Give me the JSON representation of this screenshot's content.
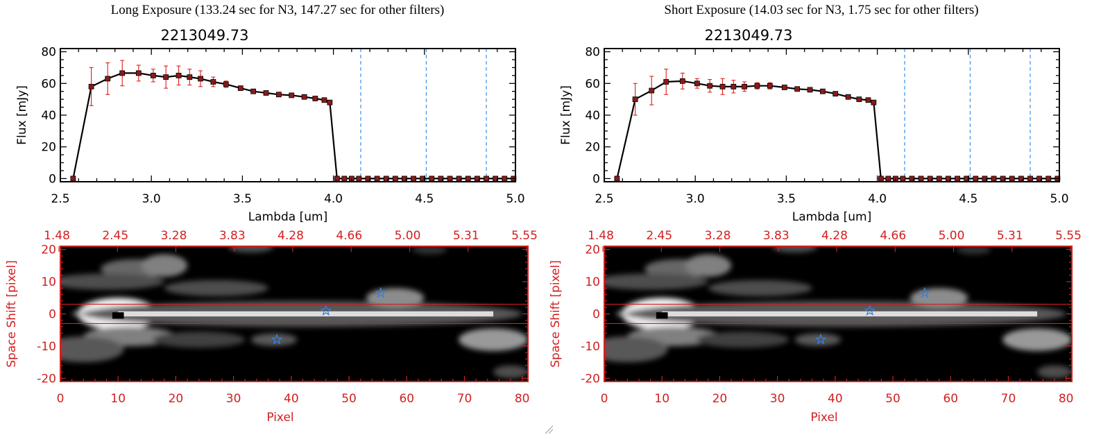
{
  "colors": {
    "line": "#000000",
    "marker": "#8b1a1a",
    "error_bar": "#e21b1b",
    "filter_line": "#3a8fe8",
    "image_frame": "#d11f1f",
    "star": "#3a7fd8"
  },
  "chart_data": [
    {
      "type": "line",
      "title": "Long Exposure (133.24 sec for N3, 147.27 sec for other filters)",
      "subtitle": "2213049.73",
      "xlabel": "Lambda [um]",
      "ylabel": "Flux [mJy]",
      "xlim": [
        2.5,
        5.0
      ],
      "ylim": [
        -2,
        82
      ],
      "xticks": [
        "2.5",
        "3.0",
        "3.5",
        "4.0",
        "4.5",
        "5.0"
      ],
      "yticks": [
        "0",
        "20",
        "40",
        "60",
        "80"
      ],
      "filter_lines": [
        4.15,
        4.51,
        4.84
      ],
      "x": [
        2.57,
        2.67,
        2.76,
        2.84,
        2.93,
        3.01,
        3.08,
        3.15,
        3.21,
        3.27,
        3.34,
        3.41,
        3.49,
        3.56,
        3.63,
        3.7,
        3.77,
        3.84,
        3.9,
        3.95,
        3.98,
        4.02,
        4.06,
        4.1,
        4.14,
        4.19,
        4.24,
        4.29,
        4.34,
        4.39,
        4.44,
        4.49,
        4.54,
        4.59,
        4.64,
        4.69,
        4.74,
        4.79,
        4.84,
        4.89,
        4.94,
        4.99
      ],
      "y": [
        0,
        58,
        63,
        66.5,
        66.5,
        65,
        64,
        65,
        64,
        63,
        61,
        59.5,
        57,
        55,
        54,
        53,
        52.5,
        51.5,
        50.5,
        49.5,
        48,
        0,
        0,
        0,
        0,
        0,
        0,
        0,
        0,
        0,
        0,
        0,
        0,
        0,
        0,
        0,
        0,
        0,
        0,
        0,
        0,
        0
      ],
      "yerr": [
        0,
        12,
        10,
        8,
        5,
        4,
        7,
        6,
        5,
        5,
        3,
        2,
        1,
        1,
        1,
        1,
        1,
        1,
        1,
        1,
        1,
        0,
        0,
        0,
        0,
        0,
        0,
        0,
        0,
        0,
        0,
        0,
        0,
        0,
        0,
        0,
        0,
        0,
        0,
        0,
        0,
        0
      ],
      "image_panel": {
        "xlabel": "Pixel",
        "ylabel": "Space Shift [pixel]",
        "xlim": [
          0,
          81
        ],
        "ylim": [
          -21,
          21
        ],
        "xticks": [
          "0",
          "10",
          "20",
          "30",
          "40",
          "50",
          "60",
          "70",
          "80"
        ],
        "yticks": [
          "-20",
          "-10",
          "0",
          "10",
          "20"
        ],
        "top_ticks": [
          "1.48",
          "2.45",
          "3.28",
          "3.83",
          "4.28",
          "4.66",
          "5.00",
          "5.31",
          "5.55"
        ],
        "band": [
          -3,
          3
        ],
        "stars": [
          [
            37.5,
            -8
          ],
          [
            46,
            1
          ],
          [
            55.5,
            6.5
          ]
        ],
        "blobs": [
          {
            "x": 10,
            "y": 0,
            "rx": 7,
            "ry": 5,
            "v": 0.95
          },
          {
            "x": 30,
            "y": 0,
            "rx": 28,
            "ry": 2.3,
            "v": 0.75
          },
          {
            "x": 42,
            "y": 0,
            "rx": 38,
            "ry": 4,
            "v": 0.35
          },
          {
            "x": 13,
            "y": 14,
            "rx": 6,
            "ry": 3,
            "v": 0.4
          },
          {
            "x": 18,
            "y": 15,
            "rx": 4,
            "ry": 3.5,
            "v": 0.5
          },
          {
            "x": 8,
            "y": 10,
            "rx": 10,
            "ry": 2.5,
            "v": 0.3
          },
          {
            "x": 27,
            "y": 8,
            "rx": 9,
            "ry": 2.5,
            "v": 0.3
          },
          {
            "x": 12,
            "y": -7,
            "rx": 8,
            "ry": 3,
            "v": 0.5
          },
          {
            "x": 4,
            "y": -11,
            "rx": 7,
            "ry": 4,
            "v": 0.35
          },
          {
            "x": 24,
            "y": -8,
            "rx": 8,
            "ry": 2.5,
            "v": 0.25
          },
          {
            "x": 37,
            "y": -8,
            "rx": 4,
            "ry": 2,
            "v": 0.35
          },
          {
            "x": 58,
            "y": 5,
            "rx": 5,
            "ry": 3,
            "v": 0.55
          },
          {
            "x": 33,
            "y": 21,
            "rx": 4,
            "ry": 2,
            "v": 0.3
          },
          {
            "x": 75,
            "y": -8,
            "rx": 6,
            "ry": 3.5,
            "v": 0.6
          },
          {
            "x": 78,
            "y": -18,
            "rx": 3,
            "ry": 2,
            "v": 0.3
          },
          {
            "x": 64,
            "y": 20,
            "rx": 3,
            "ry": 1.5,
            "v": 0.2
          }
        ]
      }
    },
    {
      "type": "line",
      "title": "Short Exposure (14.03 sec for N3, 1.75 sec for other filters)",
      "subtitle": "2213049.73",
      "xlabel": "Lambda [um]",
      "ylabel": "Flux [mJy]",
      "xlim": [
        2.5,
        5.0
      ],
      "ylim": [
        -2,
        82
      ],
      "xticks": [
        "2.5",
        "3.0",
        "3.5",
        "4.0",
        "4.5",
        "5.0"
      ],
      "yticks": [
        "0",
        "20",
        "40",
        "60",
        "80"
      ],
      "filter_lines": [
        4.15,
        4.51,
        4.84
      ],
      "x": [
        2.57,
        2.67,
        2.76,
        2.84,
        2.93,
        3.01,
        3.08,
        3.15,
        3.21,
        3.27,
        3.34,
        3.41,
        3.49,
        3.56,
        3.63,
        3.7,
        3.77,
        3.84,
        3.9,
        3.95,
        3.98,
        4.02,
        4.06,
        4.1,
        4.14,
        4.19,
        4.24,
        4.29,
        4.34,
        4.39,
        4.44,
        4.49,
        4.54,
        4.59,
        4.64,
        4.69,
        4.74,
        4.79,
        4.84,
        4.89,
        4.94,
        4.99
      ],
      "y": [
        0,
        50,
        55.5,
        61,
        61.5,
        60,
        58.5,
        58,
        58,
        58,
        58.5,
        58.5,
        57.5,
        56.5,
        56,
        55,
        53.5,
        51.5,
        50,
        49.5,
        48,
        0,
        0,
        0,
        0,
        0,
        0,
        0,
        0,
        0,
        0,
        0,
        0,
        0,
        0,
        0,
        0,
        0,
        0,
        0,
        0,
        0
      ],
      "yerr": [
        0,
        10,
        9,
        8,
        5,
        3,
        4,
        5,
        4,
        3,
        2,
        2,
        1,
        1,
        1,
        1,
        1,
        1,
        1,
        1,
        1,
        0,
        0,
        0,
        0,
        0,
        0,
        0,
        0,
        0,
        0,
        0,
        0,
        0,
        0,
        0,
        0,
        0,
        0,
        0,
        0,
        0
      ],
      "image_panel": {
        "xlabel": "Pixel",
        "ylabel": "Space Shift [pixel]",
        "xlim": [
          0,
          81
        ],
        "ylim": [
          -21,
          21
        ],
        "xticks": [
          "0",
          "10",
          "20",
          "30",
          "40",
          "50",
          "60",
          "70",
          "80"
        ],
        "yticks": [
          "-20",
          "-10",
          "0",
          "10",
          "20"
        ],
        "top_ticks": [
          "1.48",
          "2.45",
          "3.28",
          "3.83",
          "4.28",
          "4.66",
          "5.00",
          "5.31",
          "5.55"
        ],
        "band": [
          -3,
          3
        ],
        "stars": [
          [
            37.5,
            -8
          ],
          [
            46,
            1
          ],
          [
            55.5,
            6.5
          ]
        ],
        "blobs": [
          {
            "x": 10,
            "y": 0,
            "rx": 7,
            "ry": 5,
            "v": 0.95
          },
          {
            "x": 30,
            "y": 0,
            "rx": 28,
            "ry": 2.3,
            "v": 0.75
          },
          {
            "x": 42,
            "y": 0,
            "rx": 38,
            "ry": 4,
            "v": 0.35
          },
          {
            "x": 13,
            "y": 14,
            "rx": 6,
            "ry": 3,
            "v": 0.4
          },
          {
            "x": 18,
            "y": 15,
            "rx": 4,
            "ry": 3.5,
            "v": 0.5
          },
          {
            "x": 8,
            "y": 10,
            "rx": 10,
            "ry": 2.5,
            "v": 0.3
          },
          {
            "x": 27,
            "y": 8,
            "rx": 9,
            "ry": 2.5,
            "v": 0.3
          },
          {
            "x": 12,
            "y": -7,
            "rx": 8,
            "ry": 3,
            "v": 0.5
          },
          {
            "x": 4,
            "y": -11,
            "rx": 7,
            "ry": 4,
            "v": 0.35
          },
          {
            "x": 24,
            "y": -8,
            "rx": 8,
            "ry": 2.5,
            "v": 0.25
          },
          {
            "x": 37,
            "y": -8,
            "rx": 4,
            "ry": 2,
            "v": 0.35
          },
          {
            "x": 58,
            "y": 5,
            "rx": 5,
            "ry": 3,
            "v": 0.55
          },
          {
            "x": 33,
            "y": 21,
            "rx": 4,
            "ry": 2,
            "v": 0.3
          },
          {
            "x": 75,
            "y": -8,
            "rx": 6,
            "ry": 3.5,
            "v": 0.6
          },
          {
            "x": 78,
            "y": -18,
            "rx": 3,
            "ry": 2,
            "v": 0.3
          },
          {
            "x": 64,
            "y": 20,
            "rx": 3,
            "ry": 1.5,
            "v": 0.2
          }
        ]
      }
    }
  ]
}
